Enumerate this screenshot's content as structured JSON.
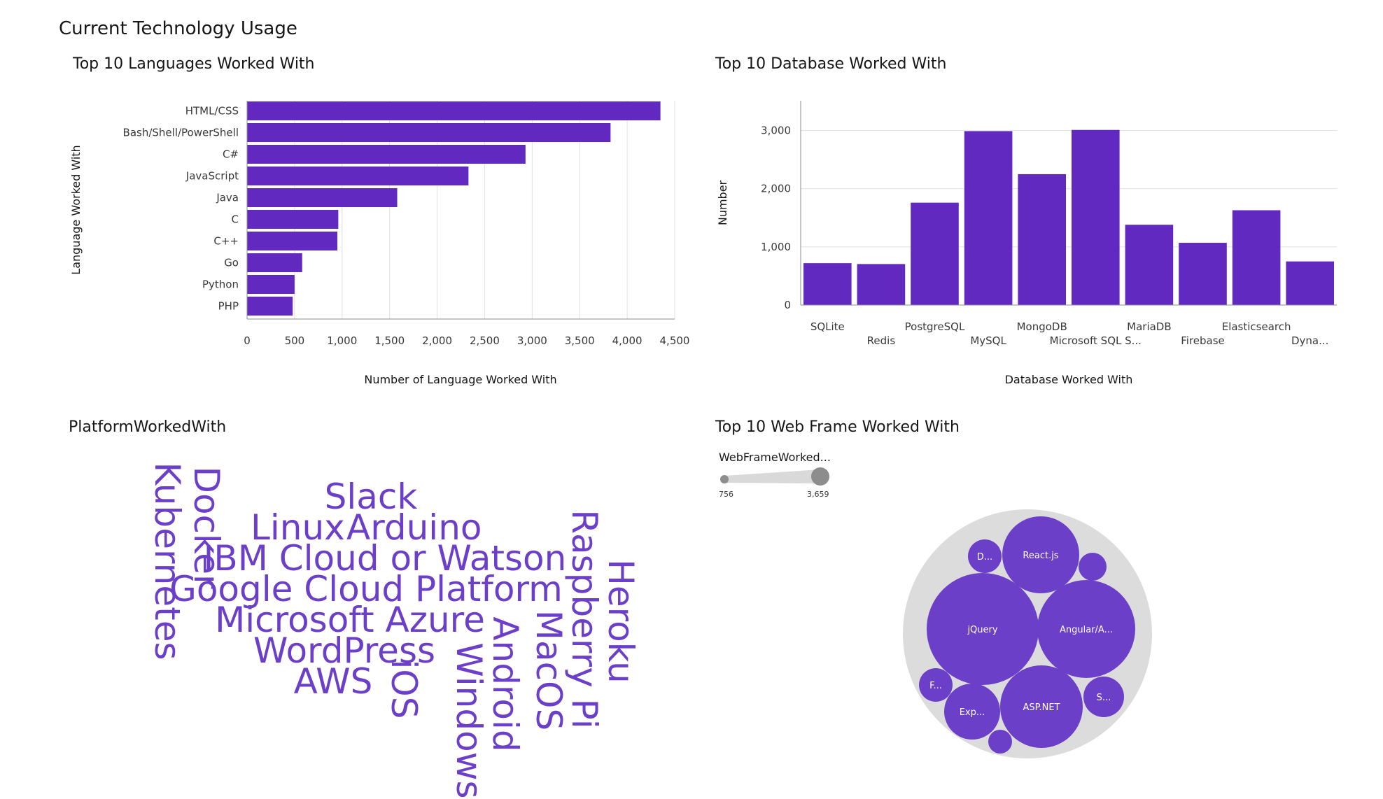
{
  "dashboard": {
    "title": "Current Technology Usage"
  },
  "colors": {
    "bar": "#6229c0",
    "word": "#6c3fc8",
    "bubble": "#6c3fc8",
    "bubble_bg": "#dcdcdc",
    "grid": "#e0e0e0"
  },
  "chart_data": [
    {
      "type": "bar",
      "orientation": "horizontal",
      "title": "Top 10 Languages Worked With",
      "xlabel": "Number of Language Worked With",
      "ylabel": "Language Worked With",
      "categories": [
        "HTML/CSS",
        "Bash/Shell/PowerShell",
        "C#",
        "JavaScript",
        "Java",
        "C",
        "C++",
        "Go",
        "Python",
        "PHP"
      ],
      "values": [
        4350,
        3825,
        2930,
        2330,
        1580,
        960,
        950,
        580,
        500,
        480
      ],
      "xlim": [
        0,
        4500
      ],
      "xticks": [
        0,
        500,
        1000,
        1500,
        2000,
        2500,
        3000,
        3500,
        4000,
        4500
      ],
      "xtick_labels": [
        "0",
        "500",
        "1,000",
        "1,500",
        "2,000",
        "2,500",
        "3,000",
        "3,500",
        "4,000",
        "4,500"
      ],
      "grid": true
    },
    {
      "type": "bar",
      "title": "Top 10 Database Worked With",
      "xlabel": "Database Worked With",
      "ylabel": "Number",
      "categories": [
        "SQLite",
        "Redis",
        "PostgreSQL",
        "MySQL",
        "MongoDB",
        "Microsoft SQL S...",
        "MariaDB",
        "Firebase",
        "Elasticsearch",
        "Dyna..."
      ],
      "values": [
        720,
        705,
        1760,
        2990,
        2250,
        3010,
        1380,
        1070,
        1630,
        750
      ],
      "ylim": [
        0,
        3500
      ],
      "yticks": [
        0,
        1000,
        2000,
        3000
      ],
      "ytick_labels": [
        "0",
        "1,000",
        "2,000",
        "3,000"
      ],
      "grid": true
    },
    {
      "type": "wordcloud",
      "title": "PlatformWorkedWith",
      "words": [
        "Slack",
        "Linux",
        "Arduino",
        "IBM Cloud or Watson",
        "Google Cloud Platform",
        "Microsoft Azure",
        "WordPress",
        "AWS",
        "Docker",
        "Kubernetes",
        "iOS",
        "Windows",
        "Android",
        "MacOS",
        "Raspberry Pi",
        "Heroku"
      ]
    },
    {
      "type": "bubble",
      "title": "Top 10 Web Frame Worked With",
      "legend": {
        "title": "WebFrameWorked...",
        "min_label": "756",
        "max_label": "3,659"
      },
      "labels": [
        "D...",
        "React.js",
        "jQuery",
        "Angular/A...",
        "F...",
        "Exp...",
        "ASP.NET",
        "S..."
      ]
    }
  ]
}
